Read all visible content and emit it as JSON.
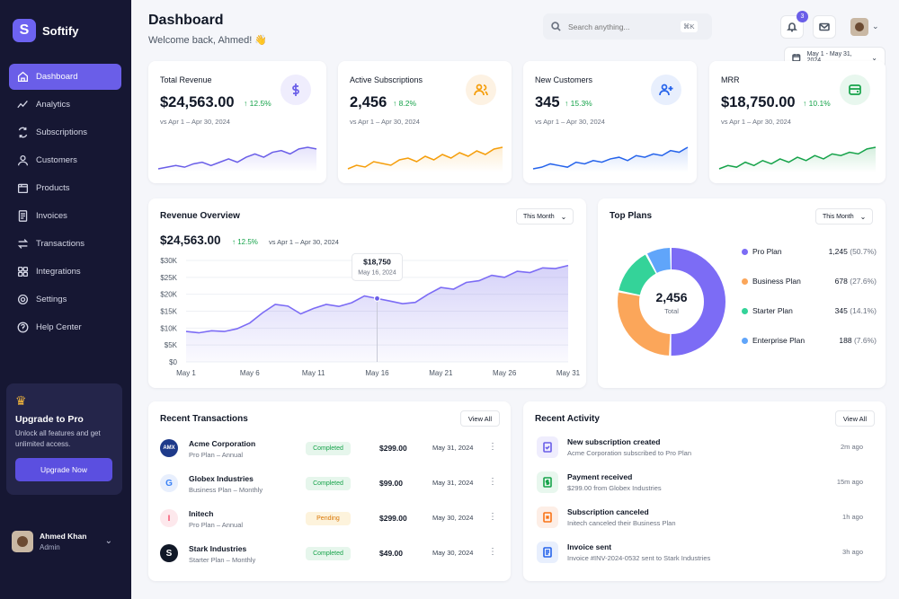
{
  "brand": {
    "logo_letter": "S",
    "name": "Softify"
  },
  "nav": [
    {
      "label": "Dashboard",
      "icon": "home-icon",
      "active": true
    },
    {
      "label": "Analytics",
      "icon": "analytics-icon"
    },
    {
      "label": "Subscriptions",
      "icon": "subscriptions-icon"
    },
    {
      "label": "Customers",
      "icon": "customers-icon"
    },
    {
      "label": "Products",
      "icon": "products-icon"
    },
    {
      "label": "Invoices",
      "icon": "invoices-icon"
    },
    {
      "label": "Transactions",
      "icon": "transactions-icon"
    },
    {
      "label": "Integrations",
      "icon": "integrations-icon"
    },
    {
      "label": "Settings",
      "icon": "settings-icon"
    },
    {
      "label": "Help Center",
      "icon": "help-icon"
    }
  ],
  "upgrade": {
    "title": "Upgrade to Pro",
    "text": "Unlock all features and get unlimited access.",
    "button": "Upgrade Now"
  },
  "user": {
    "name": "Ahmed Khan",
    "role": "Admin"
  },
  "header": {
    "title": "Dashboard",
    "subtitle": "Welcome back, Ahmed! 👋"
  },
  "search": {
    "placeholder": "Search anything...",
    "shortcut": "⌘K"
  },
  "notifications": {
    "count": "3"
  },
  "date_range": "May 1 - May 31, 2024",
  "kpis": [
    {
      "label": "Total Revenue",
      "value": "$24,563.00",
      "delta": "12.5%",
      "compare": "vs Apr 1 – Apr 30, 2024",
      "icon": "dollar-icon",
      "color": "#6a5ee8",
      "spark": [
        8,
        9,
        10,
        9,
        11,
        12,
        10,
        12,
        14,
        12,
        15,
        17,
        15,
        18,
        19,
        17,
        20,
        21,
        20
      ]
    },
    {
      "label": "Active Subscriptions",
      "value": "2,456",
      "delta": "8.2%",
      "compare": "vs Apr 1 – Apr 30, 2024",
      "icon": "users-icon",
      "color": "#f59e0b",
      "spark": [
        8,
        10,
        9,
        12,
        11,
        10,
        13,
        14,
        12,
        15,
        13,
        16,
        14,
        17,
        15,
        18,
        16,
        19,
        20
      ]
    },
    {
      "label": "New Customers",
      "value": "345",
      "delta": "15.3%",
      "compare": "vs Apr 1 – Apr 30, 2024",
      "icon": "user-plus-icon",
      "color": "#2563eb",
      "spark": [
        8,
        9,
        11,
        10,
        9,
        12,
        11,
        13,
        12,
        14,
        15,
        13,
        16,
        15,
        17,
        16,
        19,
        18,
        21
      ]
    },
    {
      "label": "MRR",
      "value": "$18,750.00",
      "delta": "10.1%",
      "compare": "vs Apr 1 – Apr 30, 2024",
      "icon": "card-icon",
      "color": "#16a34a",
      "spark": [
        7,
        9,
        8,
        11,
        9,
        12,
        10,
        13,
        11,
        14,
        12,
        15,
        13,
        16,
        15,
        17,
        16,
        19,
        20
      ]
    }
  ],
  "revenue": {
    "title": "Revenue Overview",
    "range": "This Month",
    "value": "$24,563.00",
    "delta": "12.5%",
    "compare": "vs Apr 1 – Apr 30, 2024",
    "tooltip": {
      "value": "$18,750",
      "date": "May 16, 2024"
    }
  },
  "chart_data": {
    "type": "area",
    "x": [
      "May 1",
      "May 2",
      "May 3",
      "May 4",
      "May 5",
      "May 6",
      "May 7",
      "May 8",
      "May 9",
      "May 10",
      "May 11",
      "May 12",
      "May 13",
      "May 14",
      "May 15",
      "May 16",
      "May 17",
      "May 18",
      "May 19",
      "May 20",
      "May 21",
      "May 22",
      "May 23",
      "May 24",
      "May 25",
      "May 26",
      "May 27",
      "May 28",
      "May 29",
      "May 30",
      "May 31"
    ],
    "values": [
      9000,
      8600,
      9200,
      9000,
      9800,
      11500,
      14500,
      17000,
      16500,
      14200,
      15800,
      17000,
      16400,
      17500,
      19500,
      18750,
      18000,
      17200,
      17600,
      20000,
      22000,
      21500,
      23500,
      24000,
      25600,
      25000,
      26800,
      26400,
      27800,
      27600,
      28500
    ],
    "xticks": [
      "May 1",
      "May 6",
      "May 11",
      "May 16",
      "May 21",
      "May 26",
      "May 31"
    ],
    "yticks": [
      "$0",
      "$5K",
      "$10K",
      "$15K",
      "$20K",
      "$25K",
      "$30K"
    ],
    "ylim": [
      0,
      30000
    ],
    "highlight_index": 15,
    "color": "#6a5ee8"
  },
  "plans": {
    "title": "Top Plans",
    "range": "This Month",
    "total": "2,456",
    "total_label": "Total",
    "items": [
      {
        "name": "Pro Plan",
        "count": "1,245",
        "pct": "(50.7%)",
        "value": 50.7,
        "color": "#7c6cf5"
      },
      {
        "name": "Business Plan",
        "count": "678",
        "pct": "(27.6%)",
        "value": 27.6,
        "color": "#fba65a"
      },
      {
        "name": "Starter Plan",
        "count": "345",
        "pct": "(14.1%)",
        "value": 14.1,
        "color": "#34d399"
      },
      {
        "name": "Enterprise Plan",
        "count": "188",
        "pct": "(7.6%)",
        "value": 7.6,
        "color": "#60a5fa"
      }
    ]
  },
  "transactions": {
    "title": "Recent Transactions",
    "view_all": "View All",
    "rows": [
      {
        "name": "Acme Corporation",
        "plan": "Pro Plan – Annual",
        "status": "Completed",
        "amount": "$299.00",
        "date": "May 31, 2024",
        "logo": "AMX",
        "logo_color": "#1e3a8a"
      },
      {
        "name": "Globex Industries",
        "plan": "Business Plan – Monthly",
        "status": "Completed",
        "amount": "$99.00",
        "date": "May 31, 2024",
        "logo": "G",
        "logo_color": "#3b82f6"
      },
      {
        "name": "Initech",
        "plan": "Pro Plan – Annual",
        "status": "Pending",
        "amount": "$299.00",
        "date": "May 30, 2024",
        "logo": "I",
        "logo_color": "#f43f5e"
      },
      {
        "name": "Stark Industries",
        "plan": "Starter Plan – Monthly",
        "status": "Completed",
        "amount": "$49.00",
        "date": "May 30, 2024",
        "logo": "S",
        "logo_color": "#111827"
      }
    ]
  },
  "activity": {
    "title": "Recent Activity",
    "view_all": "View All",
    "rows": [
      {
        "title": "New subscription created",
        "desc": "Acme Corporation subscribed to Pro Plan",
        "time": "2m ago",
        "icon": "document-check-icon",
        "color": "#6a5ee8",
        "bg": "#efedfd"
      },
      {
        "title": "Payment received",
        "desc": "$299.00 from Globex Industries",
        "time": "15m ago",
        "icon": "dollar-doc-icon",
        "color": "#16a34a",
        "bg": "#e8f7ee"
      },
      {
        "title": "Subscription canceled",
        "desc": "Initech canceled their Business Plan",
        "time": "1h ago",
        "icon": "cancel-icon",
        "color": "#f97316",
        "bg": "#fdeee6"
      },
      {
        "title": "Invoice sent",
        "desc": "Invoice #INV-2024-0532 sent to Stark Industries",
        "time": "3h ago",
        "icon": "invoice-icon",
        "color": "#2563eb",
        "bg": "#e8effd"
      }
    ]
  }
}
